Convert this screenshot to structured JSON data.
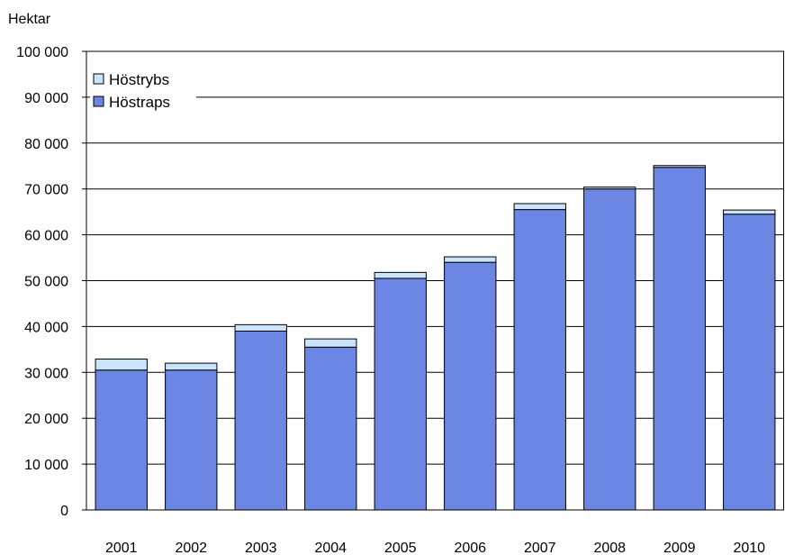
{
  "chart_data": {
    "type": "bar",
    "stacked": true,
    "ylabel": "Hektar",
    "ylim": [
      0,
      100000
    ],
    "yticks": [
      0,
      10000,
      20000,
      30000,
      40000,
      50000,
      60000,
      70000,
      80000,
      90000,
      100000
    ],
    "ytick_labels": [
      "0",
      "10 000",
      "20 000",
      "30 000",
      "40 000",
      "50 000",
      "60 000",
      "70 000",
      "80 000",
      "90 000",
      "100 000"
    ],
    "grid": true,
    "legend_position": "top-left",
    "categories": [
      "2001",
      "2002",
      "2003",
      "2004",
      "2005",
      "2006",
      "2007",
      "2008",
      "2009",
      "2010"
    ],
    "series": [
      {
        "name": "Höstraps",
        "color": "#6b86e3",
        "values": [
          30500,
          30500,
          39000,
          35500,
          50500,
          54000,
          65500,
          70000,
          74700,
          64500
        ]
      },
      {
        "name": "Höstrybs",
        "color": "#c9e4fb",
        "values": [
          2400,
          1500,
          1400,
          1800,
          1300,
          1200,
          1300,
          400,
          400,
          900
        ]
      }
    ],
    "legend_order": [
      "Höstrybs",
      "Höstraps"
    ]
  }
}
